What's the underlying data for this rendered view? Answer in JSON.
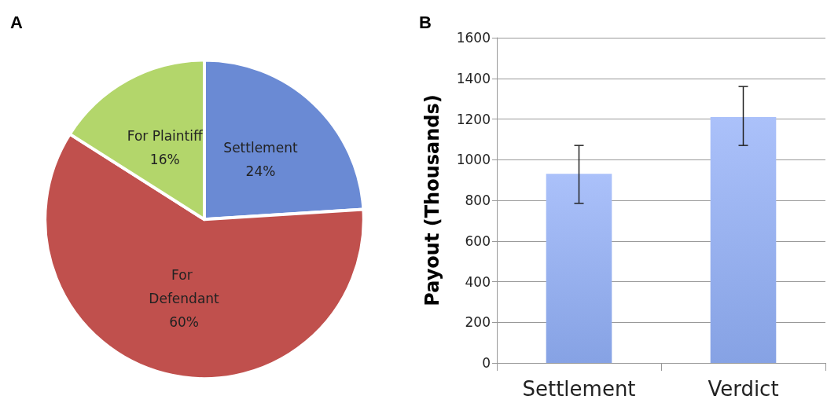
{
  "chart_data": [
    {
      "type": "pie",
      "title": "A",
      "categories": [
        "Settlement",
        "For Defendant",
        "For Plaintiff"
      ],
      "values": [
        24,
        60,
        16
      ],
      "colors": [
        "#6a8ad4",
        "#c0504d",
        "#b3d66b"
      ],
      "value_labels": [
        "24%",
        "60%",
        "16%"
      ],
      "legend": false
    },
    {
      "type": "bar",
      "title": "B",
      "ylabel": "Payout (Thousands)",
      "categories": [
        "Settlement",
        "Verdict"
      ],
      "values": [
        930,
        1210
      ],
      "errors": [
        [
          785,
          1070
        ],
        [
          1070,
          1360
        ]
      ],
      "color": "#86a2e4",
      "ylim": [
        0,
        1600
      ],
      "yticks": [
        0,
        200,
        400,
        600,
        800,
        1000,
        1200,
        1400,
        1600
      ],
      "grid": "y",
      "legend": false
    }
  ]
}
